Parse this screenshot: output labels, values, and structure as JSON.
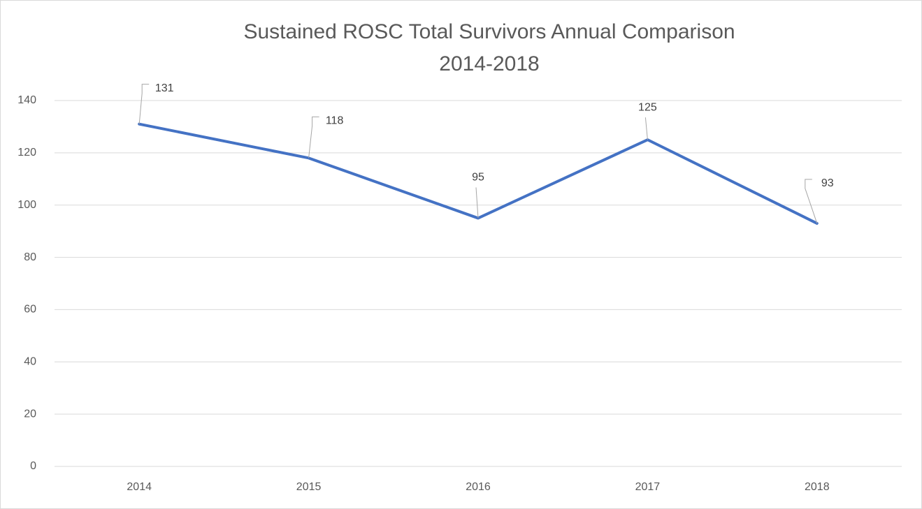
{
  "chart_data": {
    "type": "line",
    "title": [
      "Sustained ROSC Total Survivors Annual Comparison",
      "2014-2018"
    ],
    "categories": [
      "2014",
      "2015",
      "2016",
      "2017",
      "2018"
    ],
    "series": [
      {
        "color": "#4472c4",
        "values": [
          131,
          118,
          95,
          125,
          93
        ]
      }
    ],
    "ylim": [
      0,
      140
    ],
    "yticks": [
      0,
      20,
      40,
      60,
      80,
      100,
      120,
      140
    ],
    "grid": true
  }
}
